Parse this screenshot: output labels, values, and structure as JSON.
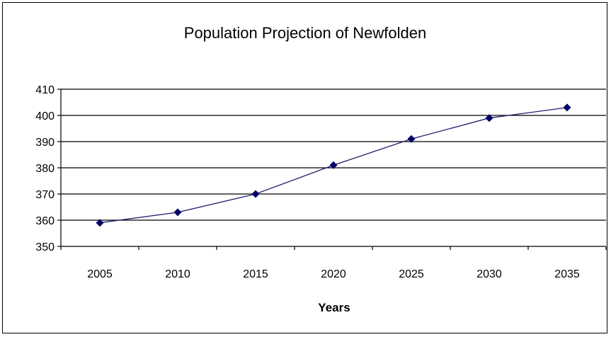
{
  "chart_data": {
    "type": "line",
    "title": "Population Projection of Newfolden",
    "xlabel": "Years",
    "ylabel": "",
    "x": [
      2005,
      2010,
      2015,
      2020,
      2025,
      2030,
      2035
    ],
    "series": [
      {
        "values": [
          359,
          363,
          370,
          381,
          391,
          399,
          403
        ]
      }
    ],
    "ylim": [
      350,
      410
    ],
    "yticks": [
      350,
      360,
      370,
      380,
      390,
      400,
      410
    ],
    "grid": true,
    "legend": "none",
    "colors": {
      "line": "#1f1f6b",
      "marker": "#000066",
      "grid": "#000000"
    }
  }
}
